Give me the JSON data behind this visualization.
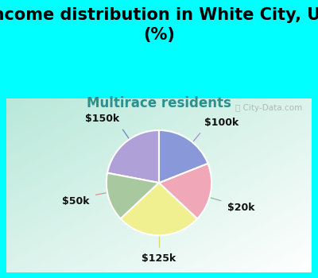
{
  "title": "Income distribution in White City, UT\n(%)",
  "subtitle": "Multirace residents",
  "title_fontsize": 15,
  "subtitle_fontsize": 12,
  "title_color": "#000000",
  "subtitle_color": "#2a9090",
  "header_bg_color": "#00ffff",
  "labels": [
    "$100k",
    "$20k",
    "$125k",
    "$50k",
    "$150k"
  ],
  "sizes": [
    22,
    15,
    26,
    18,
    19
  ],
  "colors": [
    "#b0a0d8",
    "#a8c8a0",
    "#f0f090",
    "#f0a8b8",
    "#8898d8"
  ],
  "start_angle": 90,
  "watermark": "City-Data.com",
  "watermark_color": "#aaaaaa",
  "label_fontsize": 9,
  "label_color": "#111111"
}
